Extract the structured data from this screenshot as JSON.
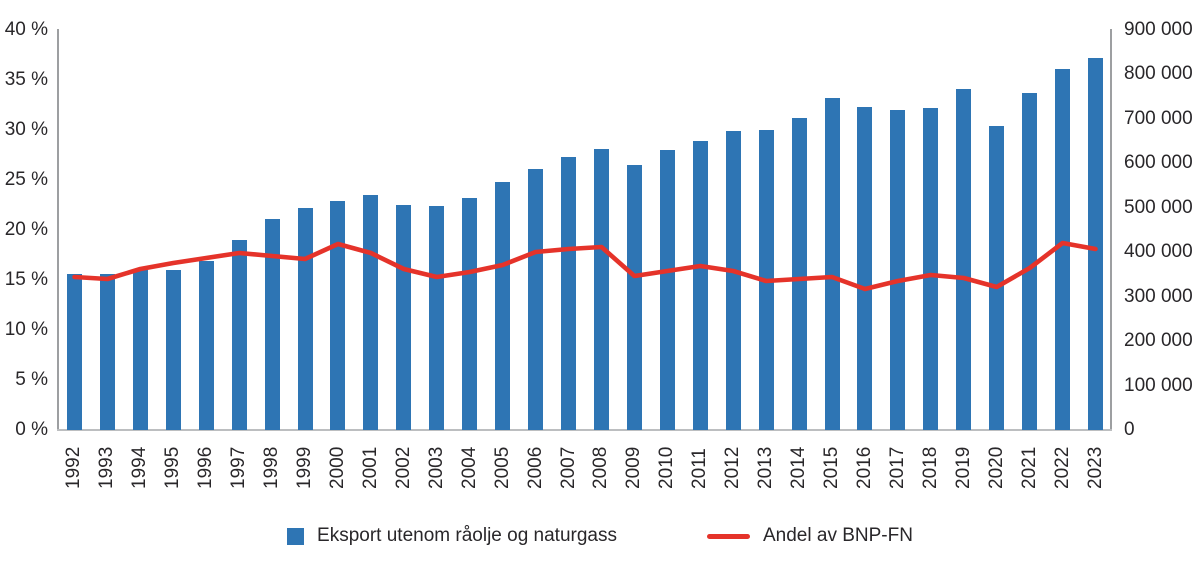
{
  "chart_data": {
    "type": "bar+line",
    "title": "",
    "grid": false,
    "legend_position": "bottom",
    "categories": [
      "1992",
      "1993",
      "1994",
      "1995",
      "1996",
      "1997",
      "1998",
      "1999",
      "2000",
      "2001",
      "2002",
      "2003",
      "2004",
      "2005",
      "2006",
      "2007",
      "2008",
      "2009",
      "2010",
      "2011",
      "2012",
      "2013",
      "2014",
      "2015",
      "2016",
      "2017",
      "2018",
      "2019",
      "2020",
      "2021",
      "2022",
      "2023"
    ],
    "series": [
      {
        "name": "Eksport utenom råolje og naturgass",
        "type": "bar",
        "axis": "right",
        "color": "#2E75B4",
        "values": [
          350000,
          352000,
          359000,
          361000,
          380000,
          428000,
          475000,
          499000,
          515000,
          528000,
          507000,
          505000,
          522000,
          558000,
          588000,
          615000,
          633000,
          596000,
          630000,
          651000,
          673000,
          675000,
          703000,
          746000,
          726000,
          721000,
          725000,
          767000,
          684000,
          759000,
          812000,
          838000
        ]
      },
      {
        "name": "Andel av BNP-FN",
        "type": "line",
        "axis": "left",
        "color": "#E5332A",
        "values": [
          15.3,
          15.1,
          16.1,
          16.7,
          17.2,
          17.7,
          17.4,
          17.1,
          18.6,
          17.7,
          16.1,
          15.3,
          15.8,
          16.5,
          17.8,
          18.1,
          18.3,
          15.4,
          15.9,
          16.4,
          15.9,
          14.9,
          15.1,
          15.3,
          14.1,
          14.9,
          15.5,
          15.2,
          14.3,
          16.2,
          18.7,
          18.1
        ]
      }
    ],
    "left_axis": {
      "min": 0,
      "max": 40,
      "tick_labels": [
        "0 %",
        "5 %",
        "10 %",
        "15 %",
        "20 %",
        "25 %",
        "30 %",
        "35 %",
        "40 %"
      ]
    },
    "right_axis": {
      "min": 0,
      "max": 900000,
      "tick_labels": [
        "0",
        "100 000",
        "200 000",
        "300 000",
        "400 000",
        "500 000",
        "600 000",
        "700 000",
        "800 000",
        "900 000"
      ]
    }
  }
}
